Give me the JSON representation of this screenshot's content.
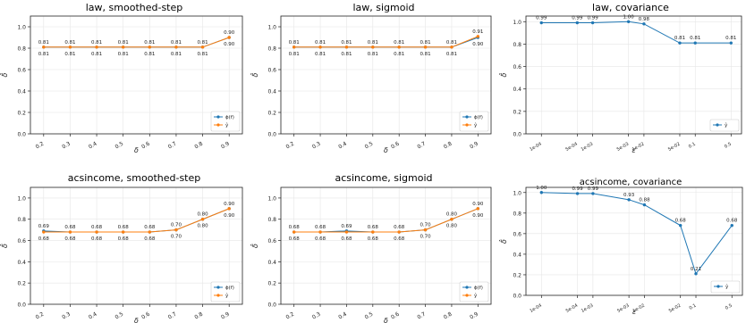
{
  "chart_data": [
    {
      "type": "line",
      "title": "law, smoothed-step",
      "xlabel": "δ",
      "ylabel": "δ̂",
      "xlim": [
        0.15,
        0.95
      ],
      "ylim": [
        0.0,
        1.1
      ],
      "x_ticks": [
        0.2,
        0.3,
        0.4,
        0.5,
        0.6,
        0.7,
        0.8,
        0.9
      ],
      "y_ticks": [
        0.0,
        0.2,
        0.4,
        0.6,
        0.8,
        1.0
      ],
      "grid": true,
      "legend_position": "lower-right",
      "series": [
        {
          "name": "ϕ(f)",
          "color": "#1f77b4",
          "label_position": "below",
          "x": [
            0.2,
            0.3,
            0.4,
            0.5,
            0.6,
            0.7,
            0.8,
            0.9
          ],
          "values": [
            0.81,
            0.81,
            0.81,
            0.81,
            0.81,
            0.81,
            0.81,
            0.9
          ]
        },
        {
          "name": "ŷ",
          "color": "#ff7f0e",
          "label_position": "above",
          "x": [
            0.2,
            0.3,
            0.4,
            0.5,
            0.6,
            0.7,
            0.8,
            0.9
          ],
          "values": [
            0.81,
            0.81,
            0.81,
            0.81,
            0.81,
            0.81,
            0.81,
            0.9
          ]
        }
      ]
    },
    {
      "type": "line",
      "title": "law, sigmoid",
      "xlabel": "δ",
      "ylabel": "δ̂",
      "xlim": [
        0.15,
        0.95
      ],
      "ylim": [
        0.0,
        1.1
      ],
      "x_ticks": [
        0.2,
        0.3,
        0.4,
        0.5,
        0.6,
        0.7,
        0.8,
        0.9
      ],
      "y_ticks": [
        0.0,
        0.2,
        0.4,
        0.6,
        0.8,
        1.0
      ],
      "grid": true,
      "legend_position": "lower-right",
      "series": [
        {
          "name": "ϕ(f)",
          "color": "#1f77b4",
          "label_position": "below",
          "x": [
            0.2,
            0.3,
            0.4,
            0.5,
            0.6,
            0.7,
            0.8,
            0.9
          ],
          "values": [
            0.81,
            0.81,
            0.81,
            0.81,
            0.81,
            0.81,
            0.81,
            0.9
          ]
        },
        {
          "name": "ŷ",
          "color": "#ff7f0e",
          "label_position": "above",
          "x": [
            0.2,
            0.3,
            0.4,
            0.5,
            0.6,
            0.7,
            0.8,
            0.9
          ],
          "values": [
            0.81,
            0.81,
            0.81,
            0.81,
            0.81,
            0.81,
            0.81,
            0.91
          ]
        }
      ]
    },
    {
      "type": "line",
      "title": "law, covariance",
      "xlabel": "ε",
      "ylabel": "δ̂",
      "xscale": "log",
      "xlim": [
        5e-05,
        0.8
      ],
      "ylim": [
        0.0,
        1.05
      ],
      "x_ticks": [
        0.0001,
        0.0005,
        0.001,
        0.005,
        0.01,
        0.05,
        0.1,
        0.5
      ],
      "x_tick_labels": [
        "1e-04",
        "5e-04",
        "1e-03",
        "5e-03",
        "1e-02",
        "5e-02",
        "0.1",
        "0.5"
      ],
      "y_ticks": [
        0.0,
        0.2,
        0.4,
        0.6,
        0.8,
        1.0
      ],
      "grid": true,
      "legend_position": "lower-right",
      "series": [
        {
          "name": "ŷ",
          "color": "#1f77b4",
          "label_position": "above",
          "x": [
            0.0001,
            0.0005,
            0.001,
            0.005,
            0.01,
            0.05,
            0.1,
            0.5
          ],
          "values": [
            0.99,
            0.99,
            0.99,
            1.0,
            0.98,
            0.81,
            0.81,
            0.81
          ]
        }
      ]
    },
    {
      "type": "line",
      "title": "acsincome, smoothed-step",
      "xlabel": "δ",
      "ylabel": "δ̂",
      "xlim": [
        0.15,
        0.95
      ],
      "ylim": [
        0.0,
        1.1
      ],
      "x_ticks": [
        0.2,
        0.3,
        0.4,
        0.5,
        0.6,
        0.7,
        0.8,
        0.9
      ],
      "y_ticks": [
        0.0,
        0.2,
        0.4,
        0.6,
        0.8,
        1.0
      ],
      "grid": true,
      "legend_position": "lower-right",
      "series": [
        {
          "name": "ϕ(f)",
          "color": "#1f77b4",
          "label_position": "above",
          "x": [
            0.2,
            0.3,
            0.4,
            0.5,
            0.6,
            0.7,
            0.8,
            0.9
          ],
          "values": [
            0.69,
            0.68,
            0.68,
            0.68,
            0.68,
            0.7,
            0.8,
            0.9
          ]
        },
        {
          "name": "ŷ",
          "color": "#ff7f0e",
          "label_position": "below",
          "x": [
            0.2,
            0.3,
            0.4,
            0.5,
            0.6,
            0.7,
            0.8,
            0.9
          ],
          "values": [
            0.68,
            0.68,
            0.68,
            0.68,
            0.68,
            0.7,
            0.8,
            0.9
          ]
        }
      ]
    },
    {
      "type": "line",
      "title": "acsincome, sigmoid",
      "xlabel": "δ",
      "ylabel": "δ̂",
      "xlim": [
        0.15,
        0.95
      ],
      "ylim": [
        0.0,
        1.1
      ],
      "x_ticks": [
        0.2,
        0.3,
        0.4,
        0.5,
        0.6,
        0.7,
        0.8,
        0.9
      ],
      "y_ticks": [
        0.0,
        0.2,
        0.4,
        0.6,
        0.8,
        1.0
      ],
      "grid": true,
      "legend_position": "lower-right",
      "series": [
        {
          "name": "ϕ(f)",
          "color": "#1f77b4",
          "label_position": "above",
          "x": [
            0.2,
            0.3,
            0.4,
            0.5,
            0.6,
            0.7,
            0.8,
            0.9
          ],
          "values": [
            0.68,
            0.68,
            0.69,
            0.68,
            0.68,
            0.7,
            0.8,
            0.9
          ]
        },
        {
          "name": "ŷ",
          "color": "#ff7f0e",
          "label_position": "below",
          "x": [
            0.2,
            0.3,
            0.4,
            0.5,
            0.6,
            0.7,
            0.8,
            0.9
          ],
          "values": [
            0.68,
            0.68,
            0.68,
            0.68,
            0.68,
            0.7,
            0.8,
            0.9
          ]
        }
      ]
    },
    {
      "type": "line",
      "title": "acsincome, covariance",
      "xlabel": "ε",
      "ylabel": "δ̂",
      "xscale": "log",
      "xlim": [
        5e-05,
        0.8
      ],
      "ylim": [
        0.0,
        1.05
      ],
      "x_ticks": [
        0.0001,
        0.0005,
        0.001,
        0.005,
        0.01,
        0.05,
        0.1,
        0.5
      ],
      "x_tick_labels": [
        "1e-04",
        "5e-04",
        "1e-03",
        "5e-03",
        "1e-02",
        "5e-02",
        "0.1",
        "0.5"
      ],
      "y_ticks": [
        0.0,
        0.2,
        0.4,
        0.6,
        0.8,
        1.0
      ],
      "grid": true,
      "legend_position": "lower-right",
      "series": [
        {
          "name": "ŷ",
          "color": "#1f77b4",
          "label_position": "above",
          "x": [
            0.0001,
            0.0005,
            0.001,
            0.005,
            0.01,
            0.05,
            0.1,
            0.5
          ],
          "values": [
            1.0,
            0.99,
            0.99,
            0.93,
            0.88,
            0.68,
            0.21,
            0.68
          ]
        }
      ]
    }
  ]
}
